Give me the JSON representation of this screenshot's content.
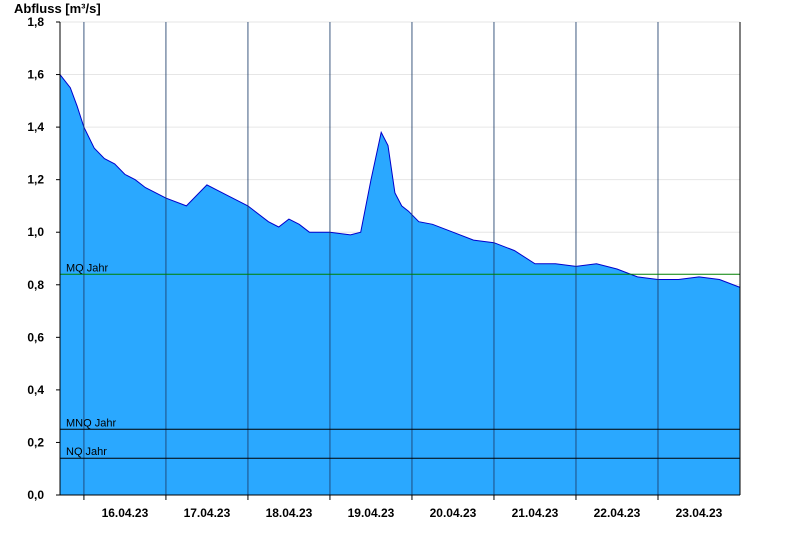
{
  "chart_data": {
    "type": "area",
    "ylabel": "Abfluss [m³/s]",
    "ylim": [
      0,
      1.8
    ],
    "y_ticks": [
      "0,0",
      "0,2",
      "0,4",
      "0,6",
      "0,8",
      "1,0",
      "1,2",
      "1,4",
      "1,6",
      "1,8"
    ],
    "x_ticks": [
      "16.04.23",
      "17.04.23",
      "18.04.23",
      "19.04.23",
      "20.04.23",
      "21.04.23",
      "22.04.23",
      "23.04.23"
    ],
    "xlim": [
      "15.04.23 17:00",
      "23.04.23 24:00"
    ],
    "grid": true,
    "colors": {
      "fill": "#2aa8ff",
      "line": "#0000cc",
      "mq": "#008000",
      "mnq": "#000000",
      "nq": "#000000"
    },
    "reference_lines": [
      {
        "label": "MQ Jahr",
        "value": 0.84,
        "color": "#008000"
      },
      {
        "label": "MNQ Jahr",
        "value": 0.25,
        "color": "#000000"
      },
      {
        "label": "NQ Jahr",
        "value": 0.14,
        "color": "#000000"
      }
    ],
    "series": [
      {
        "x": [
          "15.04.23 17:00",
          "15.04.23 20:00",
          "15.04.23 22:00",
          "16.04.23 00:00",
          "16.04.23 03:00",
          "16.04.23 06:00",
          "16.04.23 09:00",
          "16.04.23 12:00",
          "16.04.23 15:00",
          "16.04.23 18:00",
          "16.04.23 21:00",
          "17.04.23 00:00",
          "17.04.23 06:00",
          "17.04.23 12:00",
          "17.04.23 15:00",
          "17.04.23 18:00",
          "17.04.23 21:00",
          "18.04.23 00:00",
          "18.04.23 06:00",
          "18.04.23 09:00",
          "18.04.23 12:00",
          "18.04.23 15:00",
          "18.04.23 18:00",
          "19.04.23 00:00",
          "19.04.23 06:00",
          "19.04.23 09:00",
          "19.04.23 12:00",
          "19.04.23 15:00",
          "19.04.23 17:00",
          "19.04.23 19:00",
          "19.04.23 21:00",
          "19.04.23 23:00",
          "20.04.23 02:00",
          "20.04.23 06:00",
          "20.04.23 12:00",
          "20.04.23 18:00",
          "21.04.23 00:00",
          "21.04.23 06:00",
          "21.04.23 12:00",
          "21.04.23 18:00",
          "22.04.23 00:00",
          "22.04.23 06:00",
          "22.04.23 12:00",
          "22.04.23 18:00",
          "23.04.23 00:00",
          "23.04.23 06:00",
          "23.04.23 12:00",
          "23.04.23 18:00",
          "23.04.23 24:00"
        ],
        "values": [
          1.6,
          1.55,
          1.48,
          1.4,
          1.32,
          1.28,
          1.26,
          1.22,
          1.2,
          1.17,
          1.15,
          1.13,
          1.1,
          1.18,
          1.16,
          1.14,
          1.12,
          1.1,
          1.04,
          1.02,
          1.05,
          1.03,
          1.0,
          1.0,
          0.99,
          1.0,
          1.2,
          1.38,
          1.33,
          1.15,
          1.1,
          1.08,
          1.04,
          1.03,
          1.0,
          0.97,
          0.96,
          0.93,
          0.88,
          0.88,
          0.87,
          0.88,
          0.86,
          0.83,
          0.82,
          0.82,
          0.83,
          0.82,
          0.79
        ]
      }
    ]
  }
}
